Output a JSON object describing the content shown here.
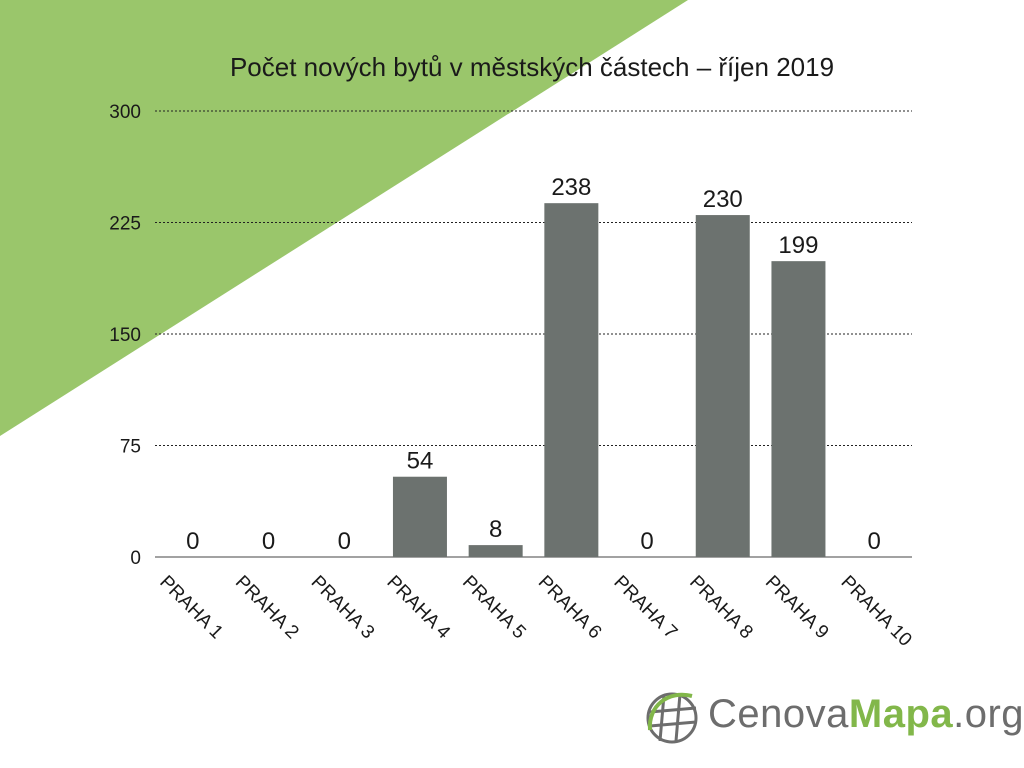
{
  "chart_data": {
    "type": "bar",
    "title": "Počet nových bytů v městských částech – říjen 2019",
    "categories": [
      "PRAHA 1",
      "PRAHA 2",
      "PRAHA 3",
      "PRAHA 4",
      "PRAHA 5",
      "PRAHA 6",
      "PRAHA 7",
      "PRAHA 8",
      "PRAHA 9",
      "PRAHA 10"
    ],
    "values": [
      0,
      0,
      0,
      54,
      8,
      238,
      0,
      230,
      199,
      0
    ],
    "ylim": [
      0,
      300
    ],
    "yticks": [
      0,
      75,
      150,
      225,
      300
    ],
    "grid": true,
    "bar_color": "#6c726f",
    "background_accent_color": "#9ac66b"
  },
  "logo": {
    "part1": "Cenova",
    "part2": "Mapa",
    "part3": ".org",
    "icon": "globe-grid-icon",
    "color_grey": "#6d6d6d",
    "color_green": "#82b74a"
  }
}
